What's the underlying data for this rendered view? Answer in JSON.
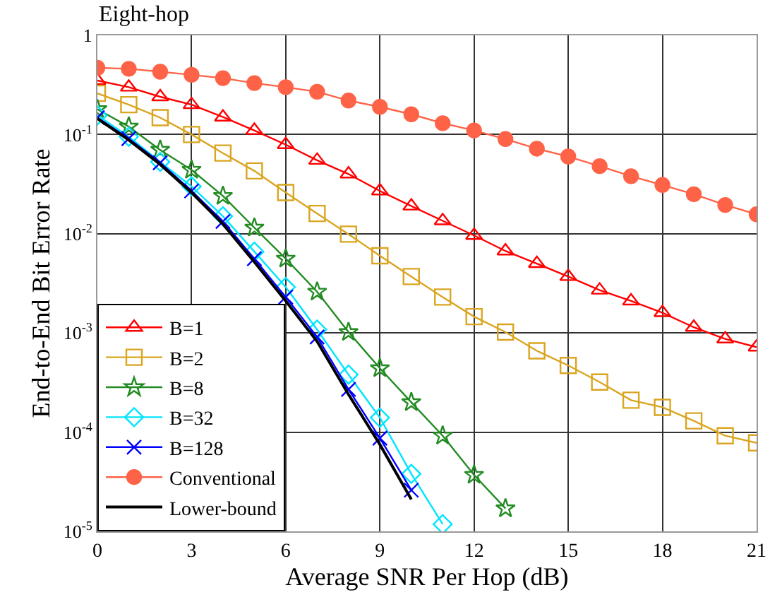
{
  "chart_data": {
    "type": "line",
    "title": "Eight-hop",
    "xlabel": "Average SNR Per Hop (dB)",
    "ylabel": "End-to-End Bit Error Rate",
    "log": "y",
    "grid": true,
    "legend": "bottom left",
    "xlim": [
      0,
      21
    ],
    "xticks": [
      0,
      3,
      6,
      9,
      12,
      15,
      18,
      21
    ],
    "ylim": [
      1e-05,
      1
    ],
    "yticks": [
      {
        "value": 1e-05,
        "label": "10$^{-5}$"
      },
      {
        "value": 0.0001,
        "label": "10$^{-4}$"
      },
      {
        "value": 0.001,
        "label": "10$^{-3}$"
      },
      {
        "value": 0.01,
        "label": "10$^{-2}$"
      },
      {
        "value": 0.1,
        "label": "10$^{-1}$"
      },
      {
        "value": 1,
        "label": "1"
      }
    ],
    "x": [
      0,
      1,
      2,
      3,
      4,
      5,
      6,
      7,
      8,
      9,
      10,
      11,
      12,
      13,
      14,
      15,
      16,
      17,
      18,
      19,
      20,
      21
    ],
    "series": [
      {
        "name": "B=1",
        "color": "#ff0000",
        "marker": "triangle",
        "values": [
          0.35,
          0.3,
          0.24,
          0.2,
          0.15,
          0.11,
          0.079,
          0.055,
          0.04,
          0.027,
          0.019,
          0.0135,
          0.0096,
          0.0067,
          0.005,
          0.0037,
          0.0027,
          0.0021,
          0.0016,
          0.00114,
          0.00087,
          0.00072
        ]
      },
      {
        "name": "B=2",
        "color": "#daa520",
        "marker": "square",
        "values": [
          0.26,
          0.2,
          0.148,
          0.1,
          0.065,
          0.043,
          0.026,
          0.016,
          0.0099,
          0.006,
          0.0037,
          0.0023,
          0.00146,
          0.00102,
          0.00066,
          0.00047,
          0.00032,
          0.00021,
          0.000178,
          0.00013,
          9.2e-05,
          7.8e-05
        ]
      },
      {
        "name": "B=8",
        "color": "#228b22",
        "marker": "star",
        "x": [
          0,
          1,
          2,
          3,
          4,
          5,
          6,
          7,
          8,
          9,
          10,
          11,
          12,
          13
        ],
        "values": [
          0.18,
          0.12,
          0.07,
          0.044,
          0.024,
          0.0115,
          0.0056,
          0.0026,
          0.00102,
          0.00044,
          0.0002,
          9.2e-05,
          3.7e-05,
          1.7e-05
        ]
      },
      {
        "name": "B=32",
        "color": "#00e5ff",
        "marker": "diamond",
        "x": [
          0,
          1,
          2,
          3,
          4,
          5,
          6,
          7,
          8,
          9,
          10,
          11
        ],
        "values": [
          0.156,
          0.095,
          0.053,
          0.03,
          0.015,
          0.0066,
          0.0029,
          0.00108,
          0.00038,
          0.00014,
          3.8e-05,
          1.18e-05
        ]
      },
      {
        "name": "B=128",
        "color": "#0000ff",
        "marker": "cross",
        "x": [
          0,
          1,
          2,
          3,
          4,
          5,
          6,
          7,
          8,
          9,
          10
        ],
        "values": [
          0.148,
          0.091,
          0.052,
          0.027,
          0.0133,
          0.0056,
          0.0023,
          0.00091,
          0.00027,
          8.7e-05,
          2.6e-05
        ]
      },
      {
        "name": "Conventional",
        "color": "#ff6347",
        "marker": "circle",
        "values": [
          0.47,
          0.46,
          0.43,
          0.4,
          0.37,
          0.33,
          0.3,
          0.27,
          0.22,
          0.19,
          0.16,
          0.13,
          0.11,
          0.09,
          0.072,
          0.06,
          0.048,
          0.038,
          0.031,
          0.025,
          0.0195,
          0.0157
        ]
      },
      {
        "name": "Lower-bound",
        "color": "#000000",
        "marker": "none",
        "x": [
          0,
          1,
          2,
          3,
          4,
          5,
          6,
          7,
          8,
          9,
          10
        ],
        "values": [
          0.145,
          0.088,
          0.05,
          0.026,
          0.0125,
          0.0052,
          0.0021,
          0.00082,
          0.00024,
          7.5e-05,
          2.1e-05
        ]
      }
    ]
  }
}
